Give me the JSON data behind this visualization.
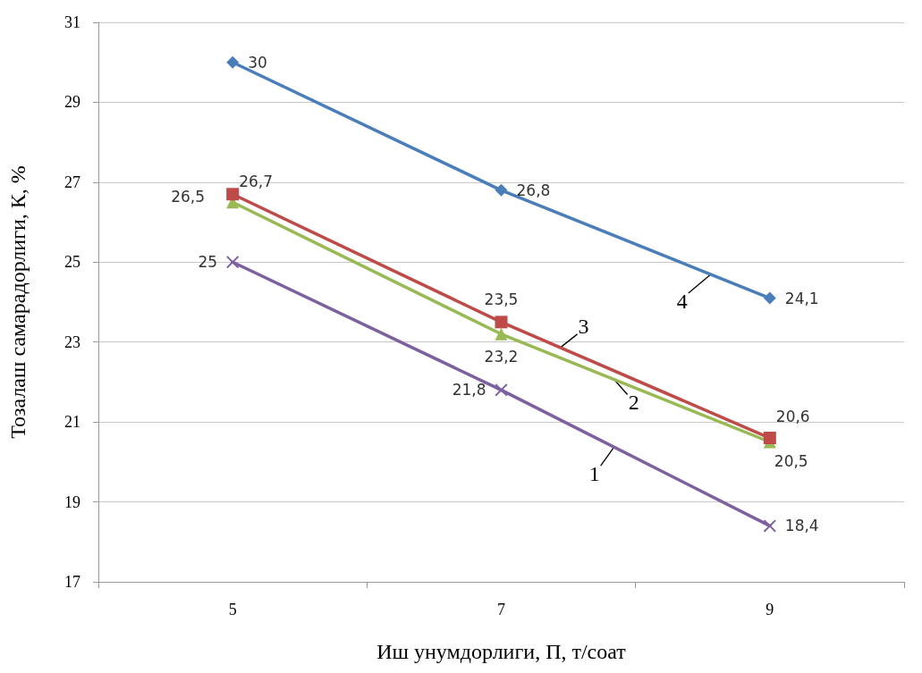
{
  "chart_data": {
    "type": "line",
    "xlabel": "Иш унумдорлиги, П, т/соат",
    "ylabel": "Тозалаш самарадорлиги, К, %",
    "categories": [
      "5",
      "7",
      "9"
    ],
    "series": [
      {
        "name": "4",
        "color": "#4a7ebb",
        "marker": "diamond",
        "values": [
          30,
          26.8,
          24.1
        ],
        "value_labels": [
          "30",
          "26,8",
          "24,1"
        ]
      },
      {
        "name": "3",
        "color": "#be4b48",
        "marker": "square",
        "values": [
          26.7,
          23.5,
          20.6
        ],
        "value_labels": [
          "26,7",
          "23,5",
          "20,6"
        ]
      },
      {
        "name": "2",
        "color": "#98b954",
        "marker": "triangle",
        "values": [
          26.5,
          23.2,
          20.5
        ],
        "value_labels": [
          "26,5",
          "23,2",
          "20,5"
        ]
      },
      {
        "name": "1",
        "color": "#7d60a0",
        "marker": "cross",
        "values": [
          25,
          21.8,
          18.4
        ],
        "value_labels": [
          "25",
          "21,8",
          "18,4"
        ]
      }
    ],
    "ylim": [
      17,
      31
    ],
    "yticks": [
      17,
      19,
      21,
      23,
      25,
      27,
      29,
      31
    ],
    "grid": "y",
    "legend": false,
    "line_style": "solid"
  }
}
